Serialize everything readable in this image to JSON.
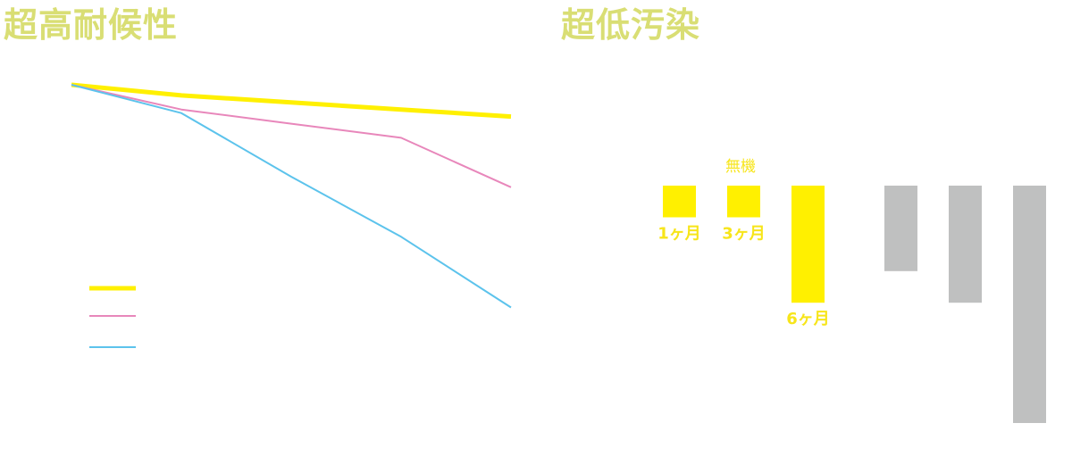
{
  "titles": {
    "left": "超高耐候性",
    "right": "超低汚染"
  },
  "colors": {
    "title": "#d9de74",
    "series_yellow": "#fff000",
    "series_pink": "#e887bb",
    "series_blue": "#5cc3ec",
    "bar_gray": "#bfc0c0",
    "label_yellow": "#f7e51a"
  },
  "chart_data": [
    {
      "type": "line",
      "title": "超高耐候性",
      "xlabel": "",
      "ylabel": "",
      "xlim": [
        0,
        4
      ],
      "ylim": [
        0,
        100
      ],
      "x": [
        0,
        1,
        2,
        3,
        4
      ],
      "series": [
        {
          "values": [
            100,
            97,
            95,
            93,
            91
          ],
          "color": "#fff000",
          "width": 5
        },
        {
          "values": [
            100,
            93,
            89,
            85,
            71
          ],
          "color": "#e887bb",
          "width": 2
        },
        {
          "values": [
            100,
            92,
            74,
            57,
            37
          ],
          "color": "#5cc3ec",
          "width": 2
        }
      ],
      "legend": {
        "position": "lower-left",
        "entries": 3
      },
      "grid": false
    },
    {
      "type": "bar",
      "title": "超低汚染",
      "group_label": "無機",
      "categories": [
        "1ヶ月",
        "3ヶ月",
        "6ヶ月",
        "",
        "",
        ""
      ],
      "values": [
        1.0,
        1.0,
        3.7,
        2.7,
        3.7,
        7.5
      ],
      "colors": [
        "#fff000",
        "#fff000",
        "#fff000",
        "#bfc0c0",
        "#bfc0c0",
        "#bfc0c0"
      ],
      "direction": "downward",
      "ylim": [
        0,
        7.5
      ],
      "grid": false
    }
  ]
}
